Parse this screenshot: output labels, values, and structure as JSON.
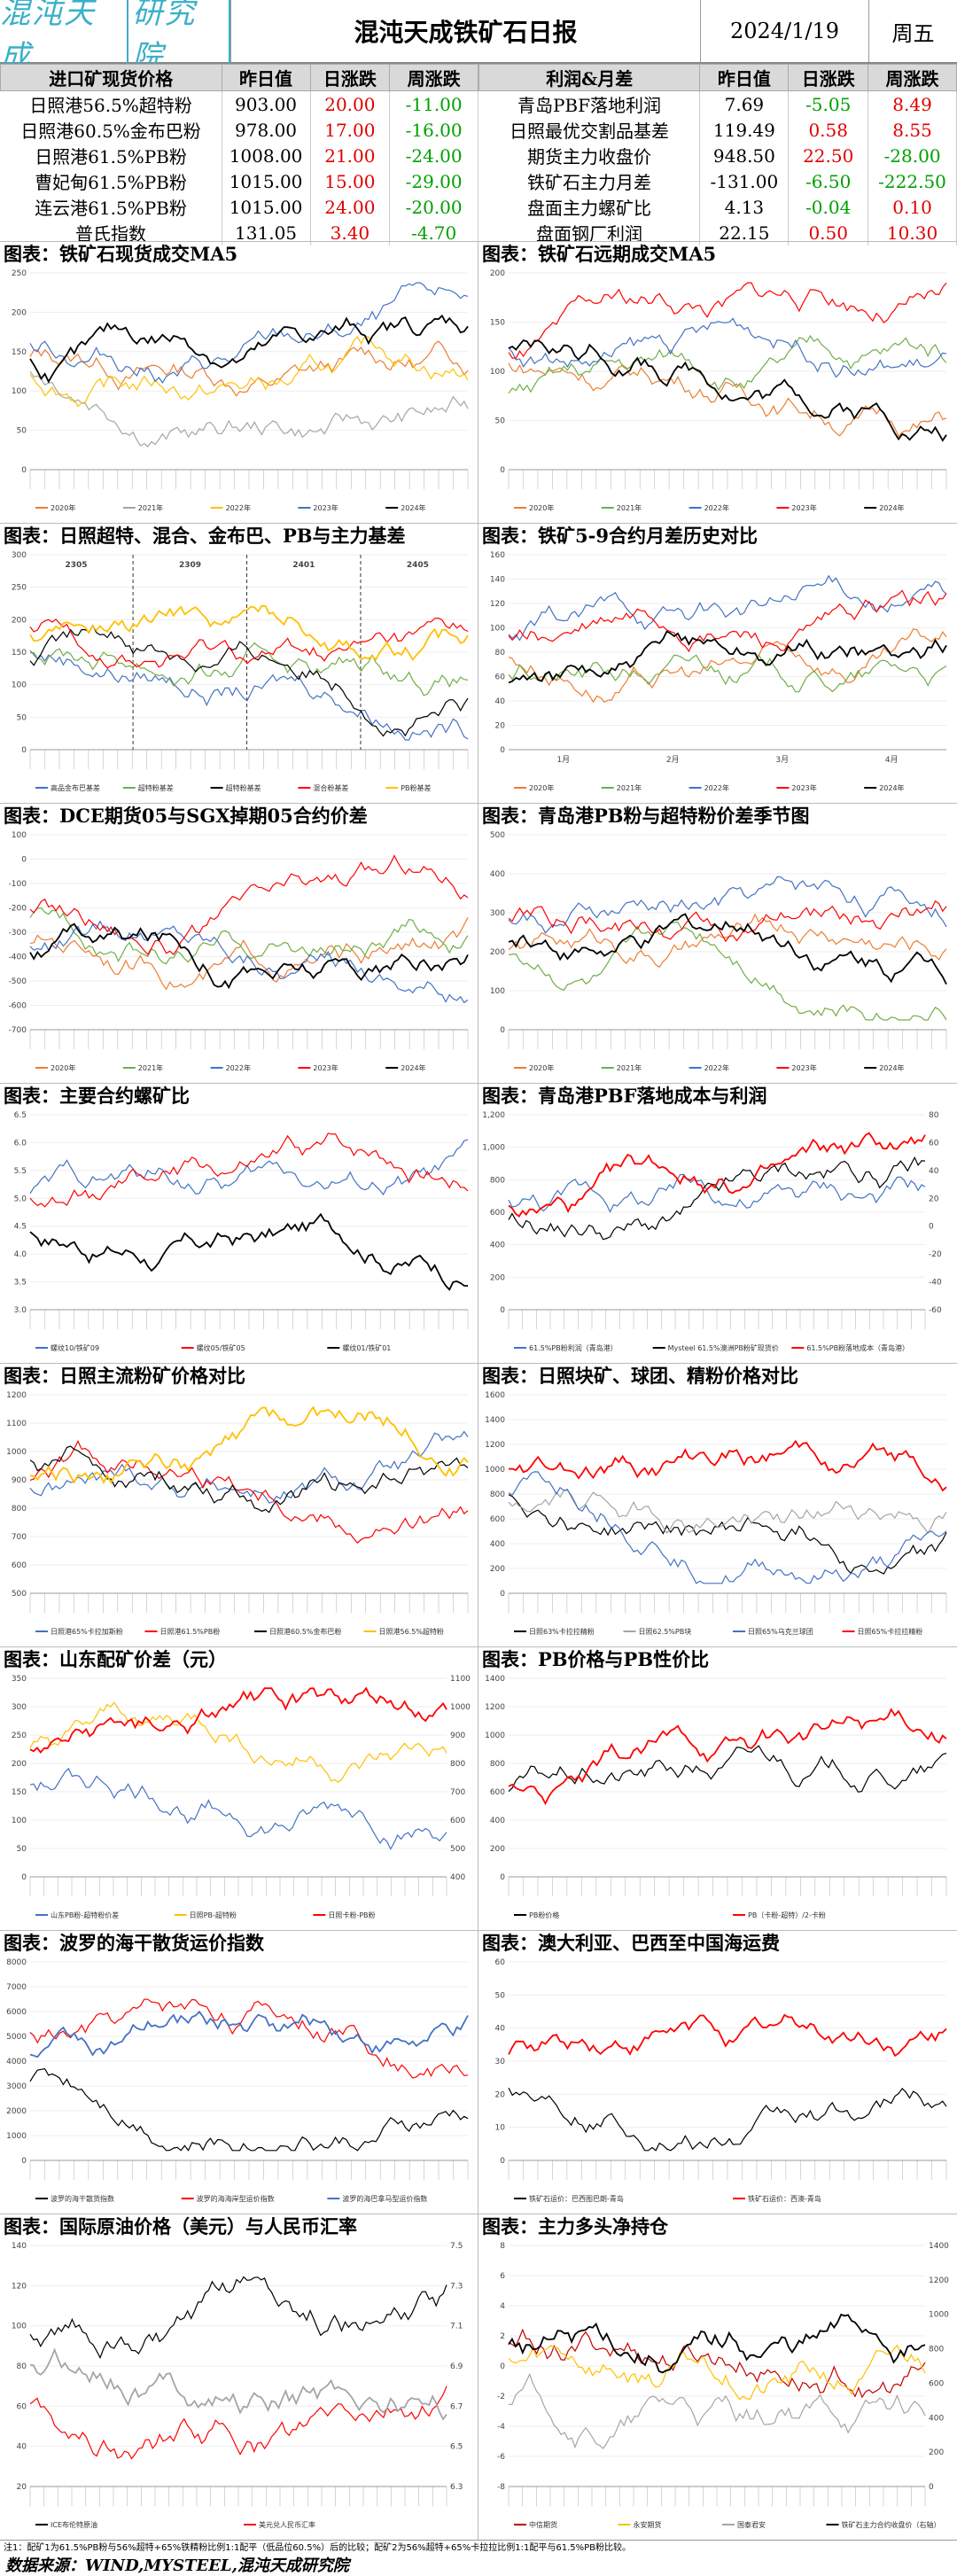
{
  "header": {
    "logo_main": "混沌天成",
    "logo_box": "研究院",
    "title": "混沌天成铁矿石日报",
    "date": "2024/1/19",
    "weekday": "周五"
  },
  "spot_table": {
    "headers": [
      "进口矿现货价格",
      "昨日值",
      "日涨跌",
      "周涨跌"
    ],
    "rows": [
      {
        "name": "日照港56.5%超特粉",
        "value": "903.00",
        "day": "20.00",
        "week": "-11.00"
      },
      {
        "name": "日照港60.5%金布巴粉",
        "value": "978.00",
        "day": "17.00",
        "week": "-16.00"
      },
      {
        "name": "日照港61.5%PB粉",
        "value": "1008.00",
        "day": "21.00",
        "week": "-24.00"
      },
      {
        "name": "曹妃甸61.5%PB粉",
        "value": "1015.00",
        "day": "15.00",
        "week": "-29.00"
      },
      {
        "name": "连云港61.5%PB粉",
        "value": "1015.00",
        "day": "24.00",
        "week": "-20.00"
      },
      {
        "name": "普氏指数",
        "value": "131.05",
        "day": "3.40",
        "week": "-4.70"
      }
    ]
  },
  "profit_table": {
    "headers": [
      "利润&月差",
      "昨日值",
      "日涨跌",
      "周涨跌"
    ],
    "rows": [
      {
        "name": "青岛PBF落地利润",
        "value": "7.69",
        "day": "-5.05",
        "week": "8.49"
      },
      {
        "name": "日照最优交割品基差",
        "value": "119.49",
        "day": "0.58",
        "week": "8.55"
      },
      {
        "name": "期货主力收盘价",
        "value": "948.50",
        "day": "22.50",
        "week": "-28.00"
      },
      {
        "name": "铁矿石主力月差",
        "value": "-131.00",
        "day": "-6.50",
        "week": "-222.50"
      },
      {
        "name": "盘面主力螺矿比",
        "value": "4.13",
        "day": "-0.04",
        "week": "0.10"
      },
      {
        "name": "盘面钢厂利润",
        "value": "22.15",
        "day": "0.50",
        "week": "10.30"
      }
    ]
  },
  "panels": [
    {
      "title": "图表：铁矿石现货成交MA5",
      "legend": [
        "2020年",
        "2021年",
        "2022年",
        "2023年",
        "2024年"
      ],
      "y_ticks": [
        "250",
        "200",
        "150",
        "100",
        "50",
        "0"
      ],
      "colors": [
        "#ed7d31",
        "#a5a5a5",
        "#ffc000",
        "#4472c4",
        "#000000"
      ]
    },
    {
      "title": "图表：铁矿石远期成交MA5",
      "legend": [
        "2020年",
        "2021年",
        "2022年",
        "2023年",
        "2024年"
      ],
      "y_ticks": [
        "200",
        "150",
        "100",
        "50",
        "0"
      ],
      "colors": [
        "#ed7d31",
        "#70ad47",
        "#4472c4",
        "#ff0000",
        "#000000"
      ]
    },
    {
      "title": "图表：日照超特、混合、金布巴、PB与主力基差",
      "legend": [
        "高品金布巴基差",
        "超特粉基差",
        "超特粉基差",
        "混合粉基差",
        "PB粉基差"
      ],
      "y_ticks": [
        "300",
        "250",
        "200",
        "150",
        "100",
        "50",
        "0"
      ],
      "annotations": [
        "2305",
        "2309",
        "2401",
        "2405"
      ],
      "colors": [
        "#4472c4",
        "#70ad47",
        "#000000",
        "#ff0000",
        "#ffc000"
      ]
    },
    {
      "title": "图表：铁矿5-9合约月差历史对比",
      "legend": [
        "2020年",
        "2021年",
        "2022年",
        "2023年",
        "2024年"
      ],
      "y_ticks": [
        "160",
        "140",
        "120",
        "100",
        "80",
        "60",
        "40",
        "20",
        "0"
      ],
      "x_ticks": [
        "1月",
        "2月",
        "3月",
        "4月"
      ],
      "colors": [
        "#ed7d31",
        "#70ad47",
        "#4472c4",
        "#ff0000",
        "#000000"
      ]
    },
    {
      "title": "图表：DCE期货05与SGX掉期05合约价差",
      "legend": [
        "2020年",
        "2021年",
        "2022年",
        "2023年",
        "2024年"
      ],
      "y_ticks": [
        "100",
        "0",
        "-100",
        "-200",
        "-300",
        "-400",
        "-500",
        "-600",
        "-700"
      ],
      "colors": [
        "#ed7d31",
        "#70ad47",
        "#4472c4",
        "#ff0000",
        "#000000"
      ]
    },
    {
      "title": "图表：青岛港PB粉与超特粉价差季节图",
      "legend": [
        "2020年",
        "2021年",
        "2022年",
        "2023年",
        "2024年"
      ],
      "y_ticks": [
        "500",
        "400",
        "300",
        "200",
        "100",
        "0"
      ],
      "colors": [
        "#ed7d31",
        "#70ad47",
        "#4472c4",
        "#ff0000",
        "#000000"
      ]
    },
    {
      "title": "图表：主要合约螺矿比",
      "legend": [
        "螺纹10/铁矿09",
        "螺纹05/铁矿05",
        "螺纹01/铁矿01"
      ],
      "y_ticks": [
        "6.5",
        "6.0",
        "5.5",
        "5.0",
        "4.5",
        "4.0",
        "3.5",
        "3.0"
      ],
      "colors": [
        "#4472c4",
        "#ff0000",
        "#000000"
      ]
    },
    {
      "title": "图表：青岛港PBF落地成本与利润",
      "legend": [
        "61.5%PB粉利润（青岛港）",
        "Mysteel 61.5%澳洲PB粉矿现货价",
        "61.5%PB粉落地成本（青岛港）"
      ],
      "y_ticks": [
        "1,200",
        "1,000",
        "800",
        "600",
        "400",
        "200",
        "0"
      ],
      "y2_ticks": [
        "80",
        "60",
        "40",
        "20",
        "0",
        "-20",
        "-40",
        "-60"
      ],
      "colors": [
        "#4472c4",
        "#000000",
        "#ff0000"
      ]
    },
    {
      "title": "图表：日照主流粉矿价格对比",
      "legend": [
        "日照港65%卡拉加斯粉",
        "日照港61.5%PB粉",
        "日照港60.5%金布巴粉",
        "日照港56.5%超特粉"
      ],
      "y_ticks": [
        "1200",
        "1100",
        "1000",
        "900",
        "800",
        "700",
        "600",
        "500"
      ],
      "colors": [
        "#4472c4",
        "#ff0000",
        "#000000",
        "#ffc000"
      ]
    },
    {
      "title": "图表：日照块矿、球团、精粉价格对比",
      "legend": [
        "日照63%卡拉拉精粉",
        "日照62.5%PB块",
        "日照65%乌克兰球团",
        "日照65%卡拉拉精粉"
      ],
      "y_ticks": [
        "1600",
        "1400",
        "1200",
        "1000",
        "800",
        "600",
        "400",
        "200",
        "0"
      ],
      "colors": [
        "#000000",
        "#a5a5a5",
        "#4472c4",
        "#ff0000"
      ]
    },
    {
      "title": "图表：山东配矿价差（元）",
      "legend": [
        "山东PB粉-超特粉价差",
        "日照PB-超特粉",
        "日照卡粉-PB粉"
      ],
      "y_ticks": [
        "350",
        "300",
        "250",
        "200",
        "150",
        "100",
        "50",
        "0"
      ],
      "y2_ticks": [
        "1100",
        "1000",
        "900",
        "800",
        "700",
        "600",
        "500",
        "400"
      ],
      "colors": [
        "#4472c4",
        "#ffc000",
        "#ff0000"
      ]
    },
    {
      "title": "图表：PB价格与PB性价比",
      "legend": [
        "PB粉价格",
        "PB（卡粉-超特）/2-卡粉"
      ],
      "y_ticks": [
        "1400",
        "1200",
        "1000",
        "800",
        "600",
        "400",
        "200",
        "0"
      ],
      "colors": [
        "#000000",
        "#ff0000"
      ]
    },
    {
      "title": "图表：波罗的海干散货运价指数",
      "legend": [
        "波罗的海干散货指数",
        "波罗的海海岸型运价指数",
        "波罗的海巴拿马型运价指数"
      ],
      "y_ticks": [
        "8000",
        "7000",
        "6000",
        "5000",
        "4000",
        "3000",
        "2000",
        "1000",
        "0"
      ],
      "colors": [
        "#000000",
        "#ff0000",
        "#4472c4"
      ]
    },
    {
      "title": "图表：澳大利亚、巴西至中国海运费",
      "legend": [
        "铁矿石运价：巴西图巴朗-青岛",
        "铁矿石运价：西澳-青岛"
      ],
      "y_ticks": [
        "60",
        "50",
        "40",
        "30",
        "20",
        "10",
        "0"
      ],
      "colors": [
        "#000000",
        "#ff0000"
      ]
    },
    {
      "title": "图表：国际原油价格（美元）与人民币汇率",
      "legend": [
        "ICE布伦特原油",
        "美元兑人民币汇率"
      ],
      "y_ticks": [
        "140",
        "120",
        "100",
        "80",
        "60",
        "40",
        "20"
      ],
      "y2_ticks": [
        "7.5",
        "7.3",
        "7.1",
        "6.9",
        "6.7",
        "6.5",
        "6.3"
      ],
      "colors": [
        "#000000",
        "#ff0000",
        "#a5a5a5"
      ]
    },
    {
      "title": "图表：主力多头净持仓",
      "legend": [
        "中信期货",
        "永安期货",
        "国泰君安",
        "铁矿石主力合约收盘价（右轴）"
      ],
      "y_ticks": [
        "8",
        "6",
        "4",
        "2",
        "0",
        "-2",
        "-4",
        "-6",
        "-8"
      ],
      "y2_ticks": [
        "1400",
        "1200",
        "1000",
        "800",
        "600",
        "400",
        "200",
        "0"
      ],
      "colors": [
        "#c00000",
        "#ffc000",
        "#a5a5a5",
        "#000000"
      ]
    }
  ],
  "footer": {
    "note": "注1：配矿1为61.5%PB粉与56%超特+65%铁精粉比例1:1配平（低品位60.5%）后的比较；配矿2为56%超特+65%卡拉拉比例1:1配平与61.5%PB粉比较。",
    "source": "数据来源：WIND,MYSTEEL,混沌天成研究院"
  }
}
